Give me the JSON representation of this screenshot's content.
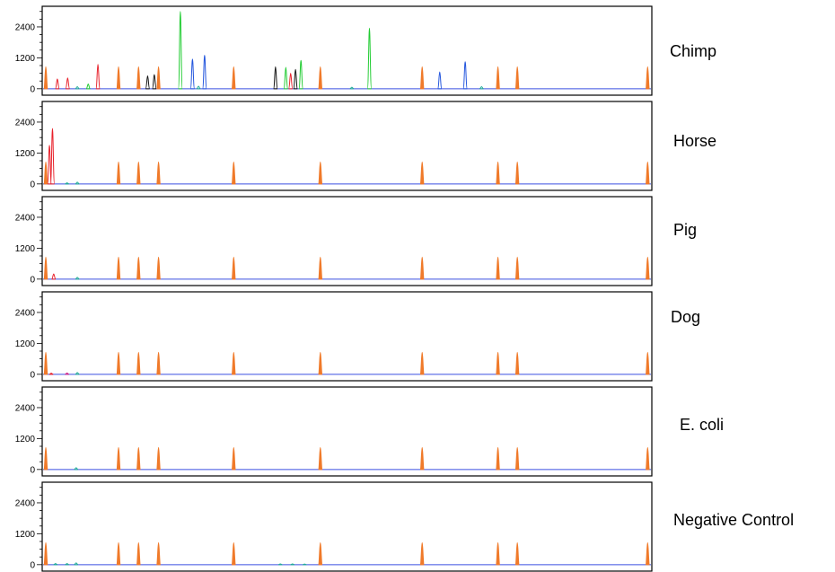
{
  "chart_data": {
    "type": "line",
    "description_free": true,
    "y_ticks": [
      0,
      1200,
      2400
    ],
    "ylim": [
      -250,
      3200
    ],
    "xlim": [
      0,
      100
    ],
    "colors": {
      "ladder": "#f07a2a",
      "blue": "#2255dd",
      "green": "#22cc33",
      "red": "#e8202a",
      "black": "#111111",
      "teal": "#22aa99",
      "magenta": "#cc2288",
      "baseline": "#3a4fe0",
      "frame": "#000000"
    },
    "ladder_x": [
      0.3,
      12.3,
      15.6,
      18.9,
      31.3,
      45.6,
      62.4,
      74.9,
      78.1,
      99.6
    ],
    "ladder_height": 850,
    "panels": [
      {
        "label": "Chimp",
        "peaks": [
          {
            "x": 2.2,
            "y": 380,
            "color": "red"
          },
          {
            "x": 3.9,
            "y": 420,
            "color": "red"
          },
          {
            "x": 5.5,
            "y": 80,
            "color": "teal"
          },
          {
            "x": 7.3,
            "y": 180,
            "color": "green"
          },
          {
            "x": 8.9,
            "y": 950,
            "color": "red"
          },
          {
            "x": 17.1,
            "y": 500,
            "color": "black"
          },
          {
            "x": 18.2,
            "y": 550,
            "color": "black"
          },
          {
            "x": 22.5,
            "y": 3000,
            "color": "green"
          },
          {
            "x": 24.5,
            "y": 1150,
            "color": "blue"
          },
          {
            "x": 25.5,
            "y": 100,
            "color": "teal"
          },
          {
            "x": 26.5,
            "y": 1300,
            "color": "blue"
          },
          {
            "x": 38.2,
            "y": 850,
            "color": "black"
          },
          {
            "x": 39.9,
            "y": 830,
            "color": "green"
          },
          {
            "x": 40.7,
            "y": 600,
            "color": "red"
          },
          {
            "x": 41.5,
            "y": 750,
            "color": "black"
          },
          {
            "x": 42.4,
            "y": 1100,
            "color": "green"
          },
          {
            "x": 50.8,
            "y": 60,
            "color": "teal"
          },
          {
            "x": 53.7,
            "y": 2350,
            "color": "green"
          },
          {
            "x": 65.3,
            "y": 650,
            "color": "blue"
          },
          {
            "x": 69.5,
            "y": 1050,
            "color": "blue"
          },
          {
            "x": 72.2,
            "y": 80,
            "color": "teal"
          }
        ]
      },
      {
        "label": "Horse",
        "peaks": [
          {
            "x": 0.9,
            "y": 1500,
            "color": "red"
          },
          {
            "x": 1.4,
            "y": 2150,
            "color": "red"
          },
          {
            "x": 3.8,
            "y": 40,
            "color": "teal"
          },
          {
            "x": 5.5,
            "y": 70,
            "color": "teal"
          }
        ]
      },
      {
        "label": "Pig",
        "peaks": [
          {
            "x": 1.6,
            "y": 200,
            "color": "red"
          },
          {
            "x": 5.5,
            "y": 70,
            "color": "teal"
          }
        ]
      },
      {
        "label": "Dog",
        "peaks": [
          {
            "x": 1.2,
            "y": 40,
            "color": "red"
          },
          {
            "x": 3.8,
            "y": 50,
            "color": "magenta"
          },
          {
            "x": 5.5,
            "y": 70,
            "color": "teal"
          }
        ]
      },
      {
        "label": "E. coli",
        "peaks": [
          {
            "x": 5.3,
            "y": 70,
            "color": "teal"
          }
        ]
      },
      {
        "label": "Negative Control",
        "peaks": [
          {
            "x": 1.9,
            "y": 40,
            "color": "teal"
          },
          {
            "x": 3.8,
            "y": 40,
            "color": "teal"
          },
          {
            "x": 5.3,
            "y": 70,
            "color": "teal"
          },
          {
            "x": 39.0,
            "y": 30,
            "color": "teal"
          },
          {
            "x": 41.0,
            "y": 30,
            "color": "teal"
          },
          {
            "x": 43.0,
            "y": 25,
            "color": "teal"
          }
        ]
      }
    ]
  }
}
